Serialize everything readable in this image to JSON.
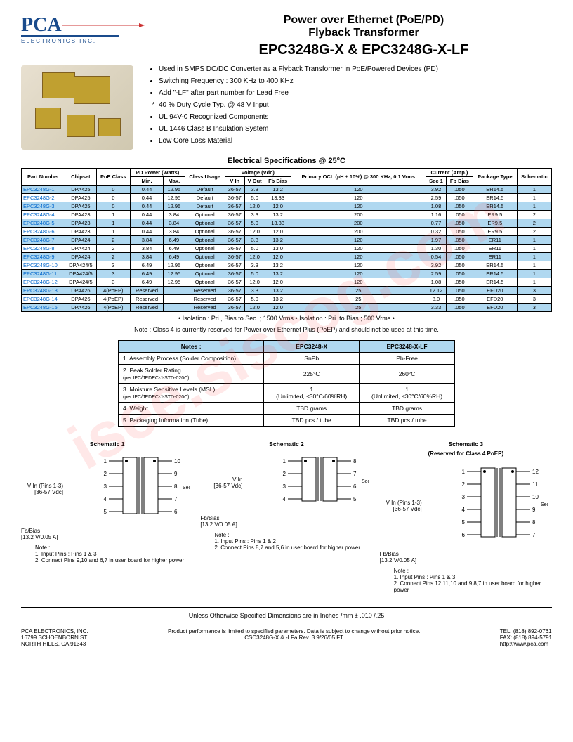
{
  "logo": {
    "letters": "PCA",
    "text": "ELECTRONICS INC."
  },
  "title": {
    "line1": "Power over Ethernet (PoE/PD)",
    "line2": "Flyback Transformer",
    "line3": "EPC3248G-X & EPC3248G-X-LF"
  },
  "bullets": [
    "Used in SMPS DC/DC Converter as a Flyback Transformer in PoE/Powered Devices (PD)",
    "Switching Frequency : 300 KHz to 400 KHz",
    "Add \"-LF\" after part number for Lead Free",
    "40 % Duty Cycle Typ. @ 48 V  Input",
    "UL 94V-0 Recognized Components",
    "UL 1446 Class B Insulation System",
    "Low Core Loss Material"
  ],
  "spec_title": "Electrical Specifications @ 25°C",
  "spec_headers": {
    "part": "Part Number",
    "chipset": "Chipset",
    "poe": "PoE Class",
    "pd": "PD Power (Watts)",
    "pd_min": "Min.",
    "pd_max": "Max.",
    "usage": "Class Usage",
    "voltage": "Voltage (Vdc)",
    "vin": "V In",
    "vout": "V Out",
    "fbbias": "Fb Bias",
    "ocl": "Primary OCL (µH ± 10%) @ 300 KHz, 0.1 Vrms",
    "current": "Current (Amp.)",
    "sec1": "Sec 1",
    "fbbias2": "Fb Bias",
    "pkg": "Package Type",
    "sch": "Schematic"
  },
  "spec_rows": [
    {
      "part": "EPC3248G-1",
      "chip": "DPA425",
      "poe": "0",
      "min": "0.44",
      "max": "12.95",
      "usage": "Default",
      "vin": "36-57",
      "vout": "3.3",
      "fb": "13.2",
      "ocl": "120",
      "s1": "3.92",
      "fb2": ".050",
      "pkg": "ER14.5",
      "sch": "1",
      "blue": true
    },
    {
      "part": "EPC3248G-2",
      "chip": "DPA425",
      "poe": "0",
      "min": "0.44",
      "max": "12.95",
      "usage": "Default",
      "vin": "36-57",
      "vout": "5.0",
      "fb": "13.33",
      "ocl": "120",
      "s1": "2.59",
      "fb2": ".050",
      "pkg": "ER14.5",
      "sch": "1",
      "blue": false
    },
    {
      "part": "EPC3248G-3",
      "chip": "DPA425",
      "poe": "0",
      "min": "0.44",
      "max": "12.95",
      "usage": "Default",
      "vin": "36-57",
      "vout": "12.0",
      "fb": "12.0",
      "ocl": "120",
      "s1": "1.08",
      "fb2": ".050",
      "pkg": "ER14.5",
      "sch": "1",
      "blue": true
    },
    {
      "part": "EPC3248G-4",
      "chip": "DPA423",
      "poe": "1",
      "min": "0.44",
      "max": "3.84",
      "usage": "Optional",
      "vin": "36-57",
      "vout": "3.3",
      "fb": "13.2",
      "ocl": "200",
      "s1": "1.16",
      "fb2": ".050",
      "pkg": "ER9.5",
      "sch": "2",
      "blue": false
    },
    {
      "part": "EPC3248G-5",
      "chip": "DPA423",
      "poe": "1",
      "min": "0.44",
      "max": "3.84",
      "usage": "Optional",
      "vin": "36-57",
      "vout": "5.0",
      "fb": "13.33",
      "ocl": "200",
      "s1": "0.77",
      "fb2": ".050",
      "pkg": "ER9.5",
      "sch": "2",
      "blue": true
    },
    {
      "part": "EPC3248G-6",
      "chip": "DPA423",
      "poe": "1",
      "min": "0.44",
      "max": "3.84",
      "usage": "Optional",
      "vin": "36-57",
      "vout": "12.0",
      "fb": "12.0",
      "ocl": "200",
      "s1": "0.32",
      "fb2": ".050",
      "pkg": "ER9.5",
      "sch": "2",
      "blue": false
    },
    {
      "part": "EPC3248G-7",
      "chip": "DPA424",
      "poe": "2",
      "min": "3.84",
      "max": "6.49",
      "usage": "Optional",
      "vin": "36-57",
      "vout": "3.3",
      "fb": "13.2",
      "ocl": "120",
      "s1": "1.97",
      "fb2": ".050",
      "pkg": "ER11",
      "sch": "1",
      "blue": true
    },
    {
      "part": "EPC3248G-8",
      "chip": "DPA424",
      "poe": "2",
      "min": "3.84",
      "max": "6.49",
      "usage": "Optional",
      "vin": "36-57",
      "vout": "5.0",
      "fb": "13.0",
      "ocl": "120",
      "s1": "1.30",
      "fb2": ".050",
      "pkg": "ER11",
      "sch": "1",
      "blue": false
    },
    {
      "part": "EPC3248G-9",
      "chip": "DPA424",
      "poe": "2",
      "min": "3.84",
      "max": "6.49",
      "usage": "Optional",
      "vin": "36-57",
      "vout": "12.0",
      "fb": "12.0",
      "ocl": "120",
      "s1": "0.54",
      "fb2": ".050",
      "pkg": "ER11",
      "sch": "1",
      "blue": true
    },
    {
      "part": "EPC3248G-10",
      "chip": "DPA424/5",
      "poe": "3",
      "min": "6.49",
      "max": "12.95",
      "usage": "Optional",
      "vin": "36-57",
      "vout": "3.3",
      "fb": "13.2",
      "ocl": "120",
      "s1": "3.92",
      "fb2": ".050",
      "pkg": "ER14.5",
      "sch": "1",
      "blue": false
    },
    {
      "part": "EPC3248G-11",
      "chip": "DPA424/5",
      "poe": "3",
      "min": "6.49",
      "max": "12.95",
      "usage": "Optional",
      "vin": "36-57",
      "vout": "5.0",
      "fb": "13.2",
      "ocl": "120",
      "s1": "2.59",
      "fb2": ".050",
      "pkg": "ER14.5",
      "sch": "1",
      "blue": true
    },
    {
      "part": "EPC3248G-12",
      "chip": "DPA424/5",
      "poe": "3",
      "min": "6.49",
      "max": "12.95",
      "usage": "Optional",
      "vin": "36-57",
      "vout": "12.0",
      "fb": "12.0",
      "ocl": "120",
      "s1": "1.08",
      "fb2": ".050",
      "pkg": "ER14.5",
      "sch": "1",
      "blue": false
    },
    {
      "part": "EPC3248G-13",
      "chip": "DPA426",
      "poe": "4(PoEP)",
      "min": "Reserved",
      "max": "",
      "usage": "Reserved",
      "vin": "36-57",
      "vout": "3.3",
      "fb": "13.2",
      "ocl": "25",
      "s1": "12.12",
      "fb2": ".050",
      "pkg": "EFD20",
      "sch": "3",
      "blue": true
    },
    {
      "part": "EPC3248G-14",
      "chip": "DPA426",
      "poe": "4(PoEP)",
      "min": "Reserved",
      "max": "",
      "usage": "Reserved",
      "vin": "36-57",
      "vout": "5.0",
      "fb": "13.2",
      "ocl": "25",
      "s1": "8.0",
      "fb2": ".050",
      "pkg": "EFD20",
      "sch": "3",
      "blue": false
    },
    {
      "part": "EPC3248G-15",
      "chip": "DPA426",
      "poe": "4(PoEP)",
      "min": "Reserved",
      "max": "",
      "usage": "Reserved",
      "vin": "36-57",
      "vout": "12.0",
      "fb": "12.0",
      "ocl": "25",
      "s1": "3.33",
      "fb2": ".050",
      "pkg": "EFD20",
      "sch": "3",
      "blue": true
    }
  ],
  "isolation": "• Isolation : Pri., Bias to Sec. ; 1500 Vrms  •  Isolation : Pri. to Bias ; 500 Vrms  •",
  "class4_note": "Note : Class 4 is currently reserved for Power over Ethernet Plus (PoEP) and should not be used at this time.",
  "notes_table": {
    "headers": [
      "Notes :",
      "EPC3248-X",
      "EPC3248-X-LF"
    ],
    "rows": [
      {
        "label": "1.  Assembly Process (Solder Composition)",
        "sub": "",
        "c1": "SnPb",
        "c2": "Pb-Free"
      },
      {
        "label": "2.  Peak Solder Rating",
        "sub": "(per IPC/JEDEC-J-STD-020C)",
        "c1": "225°C",
        "c2": "260°C"
      },
      {
        "label": "3.  Moisture Sensitive Levels (MSL)",
        "sub": "(per IPC/JEDEC-J-STD-020C)",
        "c1": "1\n(Unlimited, ≤30°C/60%RH)",
        "c2": "1\n(Unlimited, ≤30°C/60%RH)"
      },
      {
        "label": "4.  Weight",
        "sub": "",
        "c1": "TBD grams",
        "c2": "TBD grams"
      },
      {
        "label": "5.  Packaging Information          (Tube)",
        "sub": "",
        "c1": "TBD pcs / tube",
        "c2": "TBD pcs / tube"
      }
    ]
  },
  "schematics": [
    {
      "title": "Schematic 1",
      "sub": "",
      "vin": "V In (Pins 1-3)\n[36-57 Vdc]",
      "fb": "Fb/Bias\n[13.2 V/0.05 A]",
      "sec": "Sec. 1",
      "pins_left": [
        "1",
        "2",
        "3",
        "4",
        "5"
      ],
      "pins_right": [
        "10",
        "9",
        "8",
        "7",
        "6"
      ],
      "note": "Note :\n1.  Input Pins : Pins 1 & 3\n2.  Connect Pins 9,10 and 6,7 in user board for higher power"
    },
    {
      "title": "Schematic 2",
      "sub": "",
      "vin": "V In\n[36-57 Vdc]",
      "fb": "Fb/Bias\n[13.2 V/0.05 A]",
      "sec": "Sec. 1",
      "pins_left": [
        "1",
        "2",
        "3",
        "4"
      ],
      "pins_right": [
        "8",
        "7",
        "6",
        "5"
      ],
      "note": "Note :\n1.  Input Pins : Pins 1 & 2\n2.  Connect Pins 8,7 and 5,6 in user board for higher power"
    },
    {
      "title": "Schematic 3",
      "sub": "(Reserved for Class 4 PoEP)",
      "vin": "V In (Pins 1-3)\n[36-57 Vdc]",
      "fb": "Fb/Bias\n[13.2 V/0.05 A]",
      "sec": "Sec. 1",
      "pins_left": [
        "1",
        "2",
        "3",
        "4",
        "5",
        "6"
      ],
      "pins_right": [
        "12",
        "11",
        "10",
        "9",
        "8",
        "7"
      ],
      "note": "Note :\n1.  Input Pins : Pins 1 & 3\n2.  Connect Pins 12,11,10 and 9,8,7 in user board for higher power"
    }
  ],
  "dims_note": "Unless Otherwise Specified Dimensions are in Inches /mm   ± .010 /.25",
  "footer": {
    "left": "PCA ELECTRONICS, INC.\n16799 SCHOENBORN ST.\nNORTH HILLS, CA  91343",
    "center1": "Product performance is limited to specified parameters.   Data is subject to change without prior notice.",
    "center2": "CSC3248G-X &  -LFa    Rev. 3    9/26/05   FT",
    "right": "TEL: (818) 892-0761\nFAX: (818) 894-5791\nhttp://www.pca.com"
  },
  "watermark": "isee.siscog.com"
}
